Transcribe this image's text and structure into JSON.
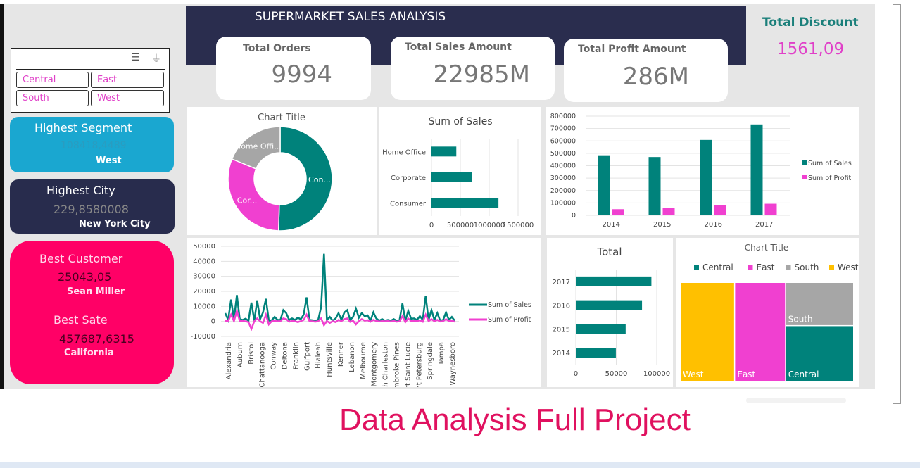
{
  "title": "SUPERMARKET SALES ANALYSIS",
  "kpis": [
    {
      "label": "Total Orders",
      "value": "9994"
    },
    {
      "label": "Total Sales Amount",
      "value": "22985M"
    },
    {
      "label": "Total Profit Amount",
      "value": "286M"
    }
  ],
  "discount": {
    "label": "Total Discount",
    "value": "1561,09"
  },
  "slicer": {
    "items": [
      "Central",
      "East",
      "South",
      "West"
    ],
    "icons": [
      "multi-select-icon",
      "clear-filter-icon"
    ]
  },
  "segment_card": {
    "title": "Highest Segment",
    "value": "108418,4489",
    "sub": "West"
  },
  "city_card": {
    "title": "Highest City",
    "value": "229,8580008",
    "sub": "New York City"
  },
  "customer_card": {
    "title": "Best Customer",
    "value": "25043,05",
    "sub": "Sean Miller",
    "title2": "Best Sate",
    "value2": "457687,6315",
    "sub2": "California"
  },
  "footer": "Data Analysis Full Project",
  "colors": {
    "teal": "#00827b",
    "magenta": "#f040d0",
    "gray": "#a6a6a6",
    "yellow": "#ffc000",
    "navy": "#2a2d4e"
  },
  "chart_data": [
    {
      "type": "pie",
      "title": "Chart Title",
      "categories": [
        "Consumer",
        "Corporate",
        "Home Office"
      ],
      "labels": [
        "Con...",
        "Cor...",
        "Home Offi..."
      ],
      "values": [
        50.5,
        30.7,
        18.8
      ]
    },
    {
      "type": "bar",
      "orientation": "horizontal",
      "title": "Sum of Sales",
      "categories": [
        "Home Office",
        "Corporate",
        "Consumer"
      ],
      "values": [
        430000,
        705000,
        1160000
      ],
      "xlim": [
        0,
        1500000
      ],
      "xticks": [
        "0",
        "500000",
        "1000000",
        "1500000"
      ]
    },
    {
      "type": "bar",
      "categories": [
        "2014",
        "2015",
        "2016",
        "2017"
      ],
      "series": [
        {
          "name": "Sum of Sales",
          "values": [
            484000,
            470000,
            608000,
            733000
          ]
        },
        {
          "name": "Sum of Profit",
          "values": [
            49500,
            61600,
            81800,
            93400
          ]
        }
      ],
      "ylim": [
        0,
        800000
      ],
      "yticks": [
        "0",
        "100000",
        "200000",
        "300000",
        "400000",
        "500000",
        "600000",
        "700000",
        "800000"
      ],
      "legend": "right"
    },
    {
      "type": "line",
      "x_tick_labels": [
        "Alexandria",
        "Auburn",
        "Bristol",
        "Chattanooga",
        "Conway",
        "Deltona",
        "Franklin",
        "Gulfport",
        "Hialeah",
        "Huntsville",
        "Kenner",
        "Lebanon",
        "Melbourne",
        "Montgomery",
        "North Charleston",
        "Pembroke Pines",
        "Port Saint Lucie",
        "Saint Petersburg",
        "Springdale",
        "Tampa",
        "Waynesboro"
      ],
      "series": [
        {
          "name": "Sum of Sales",
          "values": [
            5500,
            1000,
            14500,
            1500,
            17500,
            1500,
            1000,
            1800,
            500,
            12500,
            500,
            14000,
            1500,
            6000,
            15000,
            500,
            800,
            3000,
            1000,
            1000,
            7500,
            5500,
            1000,
            2000,
            1000,
            2500,
            1500,
            4500,
            16000,
            1000,
            800,
            500,
            1000,
            9500,
            45000,
            1000,
            3000,
            500,
            2000,
            5500,
            1000,
            6000,
            7500,
            1000,
            3000,
            8500,
            2500,
            5500,
            3500,
            4000,
            500,
            6000,
            2000,
            500,
            1500,
            500,
            1000,
            500,
            1500,
            500,
            800,
            12000,
            500,
            7000,
            1800,
            2000,
            1000,
            3500,
            1000,
            17000,
            1000,
            7500,
            1000,
            5500,
            500,
            1000,
            6000,
            1000,
            3000,
            500
          ]
        },
        {
          "name": "Sum of Profit",
          "values": [
            500,
            300,
            4500,
            200,
            7000,
            300,
            200,
            100,
            -500,
            -5000,
            100,
            2000,
            100,
            -1000,
            4500,
            -2000,
            100,
            300,
            100,
            200,
            2000,
            1500,
            -200,
            300,
            100,
            -500,
            200,
            1000,
            4500,
            200,
            100,
            -200,
            100,
            2000,
            -2500,
            200,
            -1000,
            100,
            -500,
            1000,
            200,
            1500,
            2000,
            -300,
            500,
            -2000,
            200,
            1500,
            500,
            800,
            -200,
            1000,
            300,
            -100,
            200,
            100,
            200,
            -100,
            300,
            -200,
            100,
            3500,
            -500,
            2000,
            300,
            500,
            100,
            800,
            -200,
            4500,
            200,
            1500,
            100,
            1000,
            -100,
            200,
            1500,
            200,
            500,
            -200
          ]
        }
      ],
      "ylim": [
        -10000,
        50000
      ],
      "yticks": [
        "-10000",
        "0",
        "10000",
        "20000",
        "30000",
        "40000",
        "50000"
      ],
      "legend": "right"
    },
    {
      "type": "bar",
      "orientation": "horizontal",
      "title": "Total",
      "categories": [
        "2017",
        "2016",
        "2015",
        "2014"
      ],
      "values": [
        93400,
        81800,
        61600,
        49500
      ],
      "xlim": [
        0,
        100000
      ],
      "xticks": [
        "0",
        "50000",
        "100000"
      ]
    },
    {
      "type": "treemap",
      "title": "Chart Title",
      "categories": [
        "West",
        "East",
        "South",
        "Central"
      ],
      "values": [
        725458,
        678781,
        391722,
        501240
      ],
      "legend": [
        "Central",
        "East",
        "South",
        "West"
      ]
    }
  ]
}
